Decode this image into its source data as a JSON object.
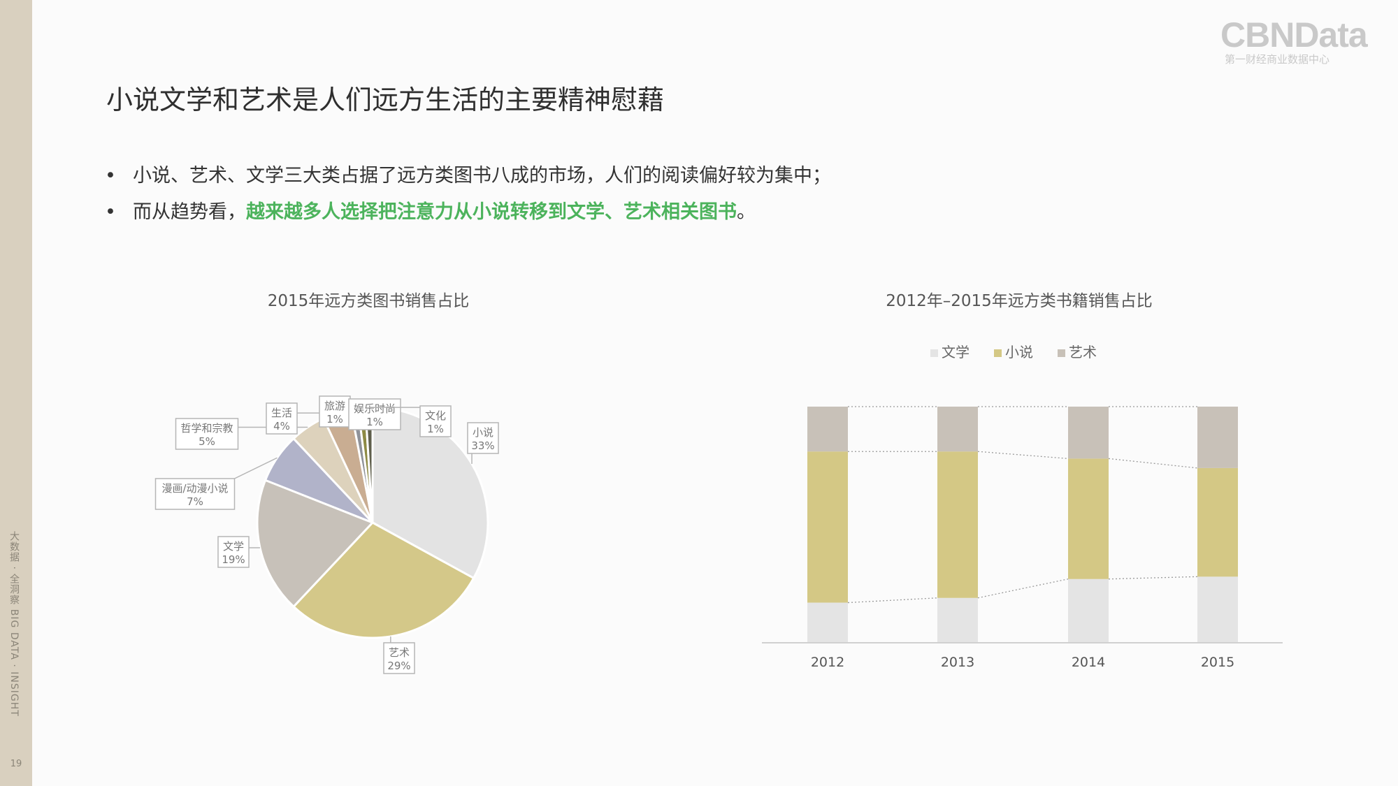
{
  "sidebar": {
    "text": "大数据 · 全洞察   BIG DATA · INSIGHT",
    "page_number": "19"
  },
  "logo": {
    "main": "CBNData",
    "sub": "第一财经商业数据中心"
  },
  "title": "小说文学和艺术是人们远方生活的主要精神慰藉",
  "bullets": [
    {
      "dot": "•",
      "text": "小说、艺术、文学三大类占据了远方类图书八成的市场，人们的阅读偏好较为集中；",
      "prefix": "",
      "highlight": "",
      "suffix": ""
    },
    {
      "dot": "•",
      "text": "",
      "prefix": "而从趋势看，",
      "highlight": "越来越多人选择把注意力从小说转移到文学、艺术相关图书",
      "suffix": "。"
    }
  ],
  "chart_data": [
    {
      "type": "pie",
      "title": "2015年远方类图书销售占比",
      "labels": [
        "小说",
        "艺术",
        "文学",
        "漫画/动漫小说",
        "哲学和宗教",
        "生活",
        "旅游",
        "娱乐时尚",
        "文化"
      ],
      "values": [
        33,
        29,
        19,
        7,
        5,
        4,
        1,
        1,
        1
      ],
      "value_labels": [
        "33%",
        "29%",
        "19%",
        "7%",
        "5%",
        "4%",
        "1%",
        "1%",
        "1%"
      ],
      "colors": [
        "#e3e3e3",
        "#d4c889",
        "#c7c1b9",
        "#b1b3c9",
        "#ddd2bc",
        "#c9ad92",
        "#8f9299",
        "#8d8a44",
        "#5f5f4c"
      ]
    },
    {
      "type": "bar",
      "stacked": true,
      "percent": true,
      "title": "2012年–2015年远方类书籍销售占比",
      "categories": [
        "2012",
        "2013",
        "2014",
        "2015"
      ],
      "series": [
        {
          "name": "文学",
          "values": [
            17,
            19,
            27,
            28
          ],
          "color": "#e4e4e4"
        },
        {
          "name": "小说",
          "values": [
            64,
            62,
            51,
            46
          ],
          "color": "#d4c885"
        },
        {
          "name": "艺术",
          "values": [
            19,
            19,
            22,
            26
          ],
          "color": "#c8c1b8"
        }
      ],
      "legend_position": "top",
      "grid": false
    }
  ]
}
